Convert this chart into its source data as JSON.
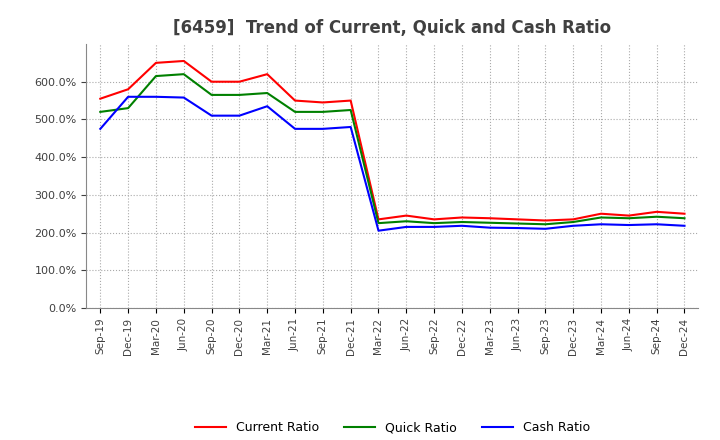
{
  "title": "[6459]  Trend of Current, Quick and Cash Ratio",
  "x_labels": [
    "Sep-19",
    "Dec-19",
    "Mar-20",
    "Jun-20",
    "Sep-20",
    "Dec-20",
    "Mar-21",
    "Jun-21",
    "Sep-21",
    "Dec-21",
    "Mar-22",
    "Jun-22",
    "Sep-22",
    "Dec-22",
    "Mar-23",
    "Jun-23",
    "Sep-23",
    "Dec-23",
    "Mar-24",
    "Jun-24",
    "Sep-24",
    "Dec-24"
  ],
  "current_ratio": [
    555,
    580,
    650,
    655,
    600,
    600,
    620,
    550,
    545,
    550,
    235,
    245,
    235,
    240,
    238,
    235,
    232,
    235,
    250,
    245,
    255,
    250
  ],
  "quick_ratio": [
    520,
    530,
    615,
    620,
    565,
    565,
    570,
    520,
    520,
    525,
    225,
    230,
    225,
    228,
    226,
    224,
    222,
    228,
    240,
    238,
    242,
    238
  ],
  "cash_ratio": [
    475,
    560,
    560,
    558,
    510,
    510,
    535,
    475,
    475,
    480,
    205,
    215,
    215,
    218,
    213,
    212,
    210,
    218,
    222,
    220,
    222,
    218
  ],
  "current_color": "#FF0000",
  "quick_color": "#008000",
  "cash_color": "#0000FF",
  "ylim": [
    0,
    700
  ],
  "yticks": [
    0,
    100,
    200,
    300,
    400,
    500,
    600
  ],
  "background_color": "#FFFFFF",
  "plot_bg_color": "#FFFFFF",
  "grid_color": "#AAAAAA",
  "title_fontsize": 12,
  "title_color": "#404040"
}
